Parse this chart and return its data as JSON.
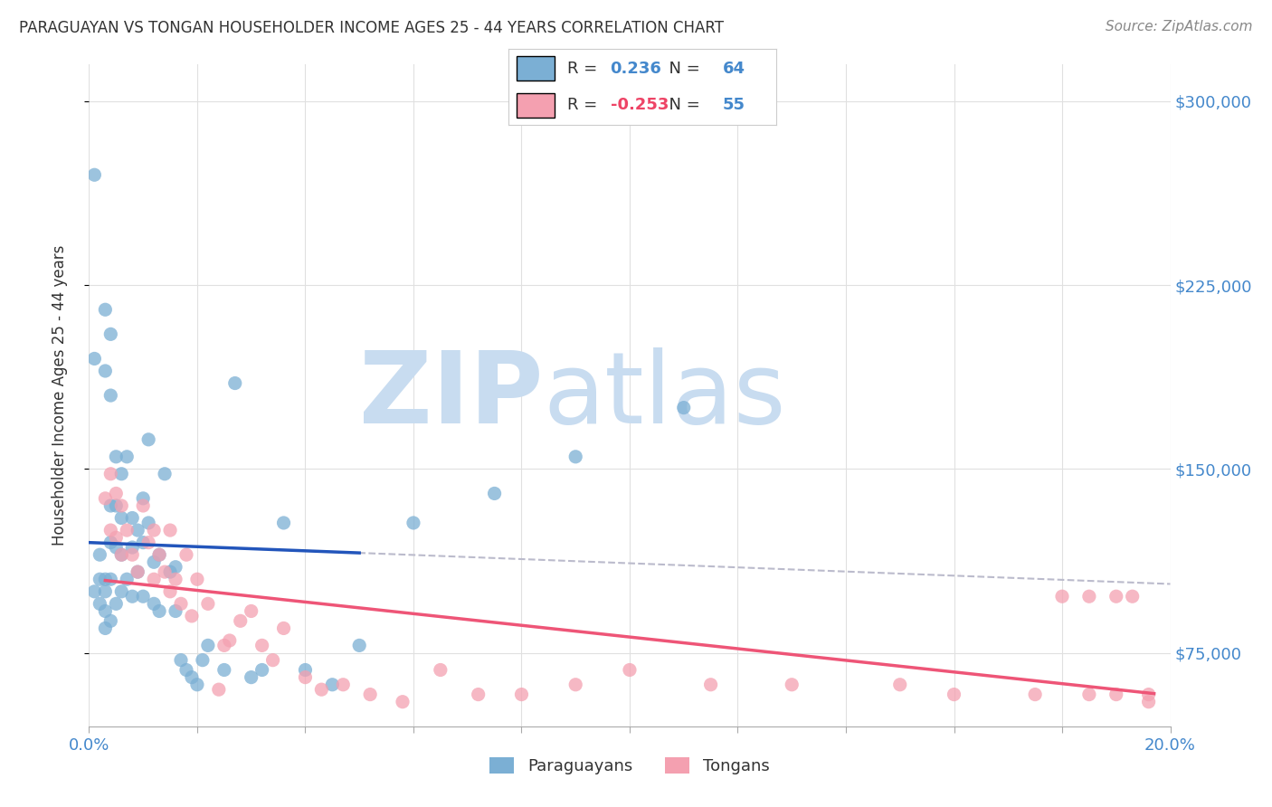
{
  "title": "PARAGUAYAN VS TONGAN HOUSEHOLDER INCOME AGES 25 - 44 YEARS CORRELATION CHART",
  "source": "Source: ZipAtlas.com",
  "ylabel": "Householder Income Ages 25 - 44 years",
  "xlim": [
    0.0,
    0.2
  ],
  "ylim": [
    45000,
    315000
  ],
  "xticks": [
    0.0,
    0.02,
    0.04,
    0.06,
    0.08,
    0.1,
    0.12,
    0.14,
    0.16,
    0.18,
    0.2
  ],
  "ytick_positions": [
    75000,
    150000,
    225000,
    300000
  ],
  "ytick_labels": [
    "$75,000",
    "$150,000",
    "$225,000",
    "$300,000"
  ],
  "paraguayan_R": 0.236,
  "paraguayan_N": 64,
  "tongan_R": -0.253,
  "tongan_N": 55,
  "blue_color": "#7BAFD4",
  "pink_color": "#F4A0B0",
  "blue_line_color": "#2255BB",
  "pink_line_color": "#EE5577",
  "gray_dash_color": "#BBBBCC",
  "watermark_zip": "ZIP",
  "watermark_atlas": "atlas",
  "watermark_color": "#C8DCF0",
  "paraguayan_x": [
    0.001,
    0.001,
    0.002,
    0.001,
    0.002,
    0.002,
    0.003,
    0.003,
    0.003,
    0.003,
    0.003,
    0.003,
    0.004,
    0.004,
    0.004,
    0.004,
    0.004,
    0.004,
    0.005,
    0.005,
    0.005,
    0.005,
    0.006,
    0.006,
    0.006,
    0.006,
    0.007,
    0.007,
    0.008,
    0.008,
    0.008,
    0.009,
    0.009,
    0.01,
    0.01,
    0.01,
    0.011,
    0.011,
    0.012,
    0.012,
    0.013,
    0.013,
    0.014,
    0.015,
    0.016,
    0.016,
    0.017,
    0.018,
    0.019,
    0.02,
    0.021,
    0.022,
    0.025,
    0.027,
    0.03,
    0.032,
    0.036,
    0.04,
    0.045,
    0.05,
    0.06,
    0.075,
    0.09,
    0.11
  ],
  "paraguayan_y": [
    100000,
    270000,
    115000,
    195000,
    105000,
    95000,
    190000,
    215000,
    105000,
    100000,
    92000,
    85000,
    205000,
    180000,
    135000,
    120000,
    105000,
    88000,
    155000,
    135000,
    118000,
    95000,
    148000,
    130000,
    115000,
    100000,
    155000,
    105000,
    130000,
    118000,
    98000,
    125000,
    108000,
    138000,
    120000,
    98000,
    162000,
    128000,
    112000,
    95000,
    115000,
    92000,
    148000,
    108000,
    110000,
    92000,
    72000,
    68000,
    65000,
    62000,
    72000,
    78000,
    68000,
    185000,
    65000,
    68000,
    128000,
    68000,
    62000,
    78000,
    128000,
    140000,
    155000,
    175000
  ],
  "tongan_x": [
    0.003,
    0.004,
    0.004,
    0.005,
    0.005,
    0.006,
    0.006,
    0.007,
    0.008,
    0.009,
    0.01,
    0.011,
    0.012,
    0.012,
    0.013,
    0.014,
    0.015,
    0.015,
    0.016,
    0.017,
    0.018,
    0.019,
    0.02,
    0.022,
    0.024,
    0.026,
    0.028,
    0.03,
    0.032,
    0.034,
    0.036,
    0.04,
    0.043,
    0.047,
    0.052,
    0.058,
    0.065,
    0.072,
    0.08,
    0.09,
    0.1,
    0.115,
    0.13,
    0.15,
    0.16,
    0.175,
    0.18,
    0.185,
    0.19,
    0.193,
    0.196,
    0.185,
    0.19,
    0.196,
    0.025
  ],
  "tongan_y": [
    138000,
    148000,
    125000,
    140000,
    122000,
    135000,
    115000,
    125000,
    115000,
    108000,
    135000,
    120000,
    125000,
    105000,
    115000,
    108000,
    125000,
    100000,
    105000,
    95000,
    115000,
    90000,
    105000,
    95000,
    60000,
    80000,
    88000,
    92000,
    78000,
    72000,
    85000,
    65000,
    60000,
    62000,
    58000,
    55000,
    68000,
    58000,
    58000,
    62000,
    68000,
    62000,
    62000,
    62000,
    58000,
    58000,
    98000,
    98000,
    98000,
    98000,
    55000,
    58000,
    58000,
    58000,
    78000
  ]
}
